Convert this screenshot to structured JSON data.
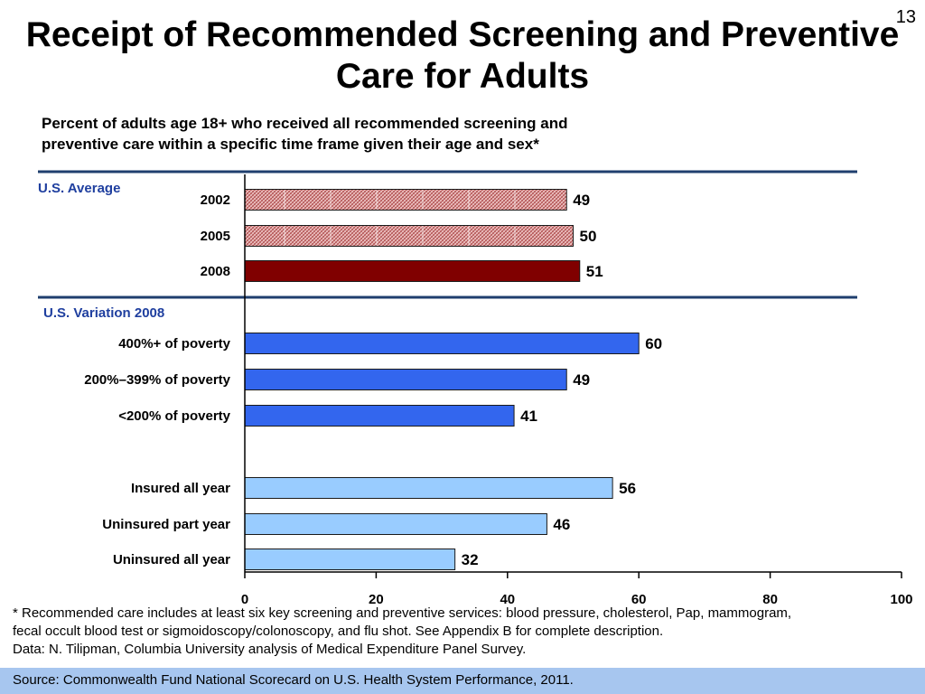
{
  "slide_number": "13",
  "title_line1": "Receipt of Recommended Screening and Preventive",
  "title_line2": "Care for Adults",
  "subtitle_line1": "Percent of adults age 18+ who received all recommended screening and",
  "subtitle_line2": "preventive care within a specific time frame given their age and sex*",
  "footnote_line1": "* Recommended care includes at least six key screening and preventive services: blood pressure, cholesterol, Pap, mammogram,",
  "footnote_line2": "fecal occult blood test or sigmoidoscopy/colonoscopy, and flu shot. See Appendix B for complete description.",
  "footnote_line3": "Data: N. Tilipman, Columbia University analysis of Medical Expenditure Panel Survey.",
  "source": "Source: Commonwealth Fund National Scorecard on U.S. Health System Performance, 2011.",
  "colors": {
    "rule": "#1f3f6e",
    "group_label": "#1f3f9f",
    "average_hatched": "#d98b8b",
    "average_2008": "#800000",
    "income": "#3366ee",
    "insurance": "#99ccff",
    "source_bar": "#a7c6ef"
  },
  "chart_data": {
    "type": "bar",
    "orientation": "horizontal",
    "xlim": [
      0,
      100
    ],
    "x_ticks": [
      "0",
      "20",
      "40",
      "60",
      "80",
      "100"
    ],
    "groups": [
      {
        "label": "U.S. Average",
        "bars": [
          {
            "category": "2002",
            "value": 49,
            "label": "49",
            "style": "hatched"
          },
          {
            "category": "2005",
            "value": 50,
            "label": "50",
            "style": "hatched"
          },
          {
            "category": "2008",
            "value": 51,
            "label": "51",
            "style": "solid-dark-red"
          }
        ]
      },
      {
        "label": "U.S. Variation 2008",
        "bars": [
          {
            "category": "400%+ of poverty",
            "value": 60,
            "label": "60",
            "style": "blue"
          },
          {
            "category": "200%–399% of poverty",
            "value": 49,
            "label": "49",
            "style": "blue"
          },
          {
            "category": "<200% of poverty",
            "value": 41,
            "label": "41",
            "style": "blue"
          },
          {
            "category": "Insured all year",
            "value": 56,
            "label": "56",
            "style": "light-blue"
          },
          {
            "category": "Uninsured part year",
            "value": 46,
            "label": "46",
            "style": "light-blue"
          },
          {
            "category": "Uninsured all year",
            "value": 32,
            "label": "32",
            "style": "light-blue"
          }
        ]
      }
    ]
  }
}
